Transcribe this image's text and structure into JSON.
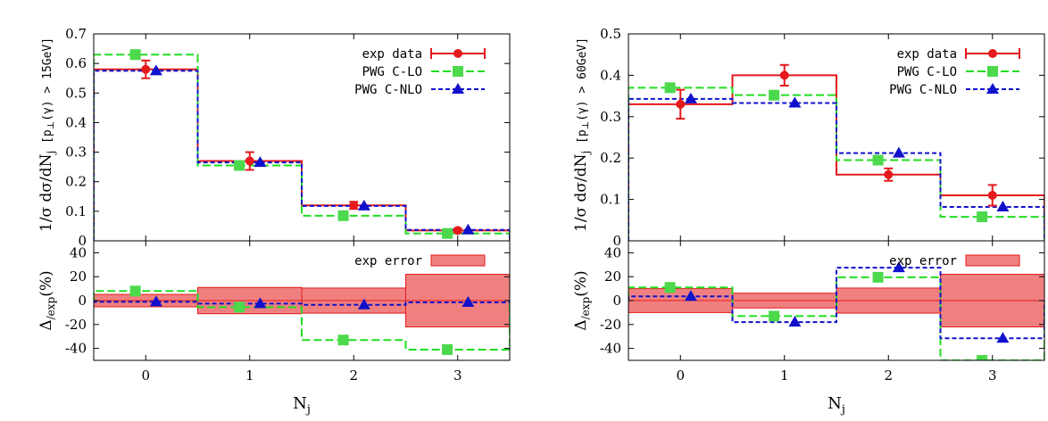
{
  "colors": {
    "exp": "#e41a1c",
    "lo": "#22dd22",
    "nlo": "#1111cc",
    "band_fill": "#f08080",
    "marker_lo": "#4cd94c"
  },
  "x_axis": {
    "label": "N",
    "label_sub": "j",
    "ticks": [
      "0",
      "1",
      "2",
      "3"
    ]
  },
  "chart_data": [
    {
      "type": "line",
      "panel": "left-top",
      "ylabel": "1/σ dσ/dN",
      "ylabel_sub": "j",
      "ylabel_cut": " [p",
      "ylabel_cut_sub": "⊥",
      "ylabel_cut_rest": "(γ) > 15GeV]",
      "ylim": [
        0,
        0.7
      ],
      "xlim": [
        -0.5,
        3.5
      ],
      "y_ticks": [
        "0",
        "0.1",
        "0.2",
        "0.3",
        "0.4",
        "0.5",
        "0.6",
        "0.7"
      ],
      "legend_position": "top-right",
      "legend": [
        "exp data",
        "PWG C-LO",
        "PWG C-NLO"
      ],
      "series": [
        {
          "key": "exp",
          "values": [
            0.58,
            0.27,
            0.12,
            0.035
          ],
          "errors": [
            0.03,
            0.03,
            0.012,
            0.006
          ]
        },
        {
          "key": "lo",
          "values": [
            0.63,
            0.255,
            0.085,
            0.025
          ]
        },
        {
          "key": "nlo",
          "values": [
            0.575,
            0.265,
            0.118,
            0.037
          ]
        }
      ]
    },
    {
      "type": "line",
      "panel": "left-bottom",
      "ylabel": "Δ",
      "ylabel_sub": "/exp",
      "ylabel_rest": "(%)",
      "ylim": [
        -50,
        50
      ],
      "xlim": [
        -0.5,
        3.5
      ],
      "y_ticks": [
        "40",
        "20",
        "0",
        "-20",
        "-40"
      ],
      "y_tick_values": [
        40,
        20,
        0,
        -20,
        -40
      ],
      "legend_position": "top-right",
      "legend": [
        "exp error"
      ],
      "band": [
        5.2,
        11,
        10.5,
        22
      ],
      "series": [
        {
          "key": "lo",
          "values": [
            8,
            -5.5,
            -33,
            -41
          ]
        },
        {
          "key": "nlo",
          "values": [
            -1,
            -2.5,
            -3.5,
            -1.5
          ]
        }
      ]
    },
    {
      "type": "line",
      "panel": "right-top",
      "ylabel": "1/σ dσ/dN",
      "ylabel_sub": "j",
      "ylabel_cut": " [p",
      "ylabel_cut_sub": "⊥",
      "ylabel_cut_rest": "(γ) > 60GeV]",
      "ylim": [
        0,
        0.5
      ],
      "xlim": [
        -0.5,
        3.5
      ],
      "y_ticks": [
        "0",
        "0.1",
        "0.2",
        "0.3",
        "0.4",
        "0.5"
      ],
      "legend_position": "top-right",
      "legend": [
        "exp data",
        "PWG C-LO",
        "PWG C-NLO"
      ],
      "series": [
        {
          "key": "exp",
          "values": [
            0.33,
            0.4,
            0.16,
            0.11
          ],
          "errors": [
            0.035,
            0.025,
            0.015,
            0.025
          ]
        },
        {
          "key": "lo",
          "values": [
            0.37,
            0.352,
            0.195,
            0.058
          ]
        },
        {
          "key": "nlo",
          "values": [
            0.343,
            0.333,
            0.212,
            0.082
          ]
        }
      ]
    },
    {
      "type": "line",
      "panel": "right-bottom",
      "ylabel": "Δ",
      "ylabel_sub": "/exp",
      "ylabel_rest": "(%)",
      "ylim": [
        -50,
        50
      ],
      "xlim": [
        -0.5,
        3.5
      ],
      "y_ticks": [
        "40",
        "20",
        "0",
        "-20",
        "-40"
      ],
      "y_tick_values": [
        40,
        20,
        0,
        -20,
        -40
      ],
      "legend_position": "top-right",
      "legend": [
        "exp error"
      ],
      "band": [
        10,
        6.2,
        10.5,
        22
      ],
      "series": [
        {
          "key": "lo",
          "values": [
            11,
            -13,
            19.5,
            -50
          ]
        },
        {
          "key": "nlo",
          "values": [
            3.5,
            -18,
            27.5,
            -31.5
          ]
        }
      ]
    }
  ]
}
